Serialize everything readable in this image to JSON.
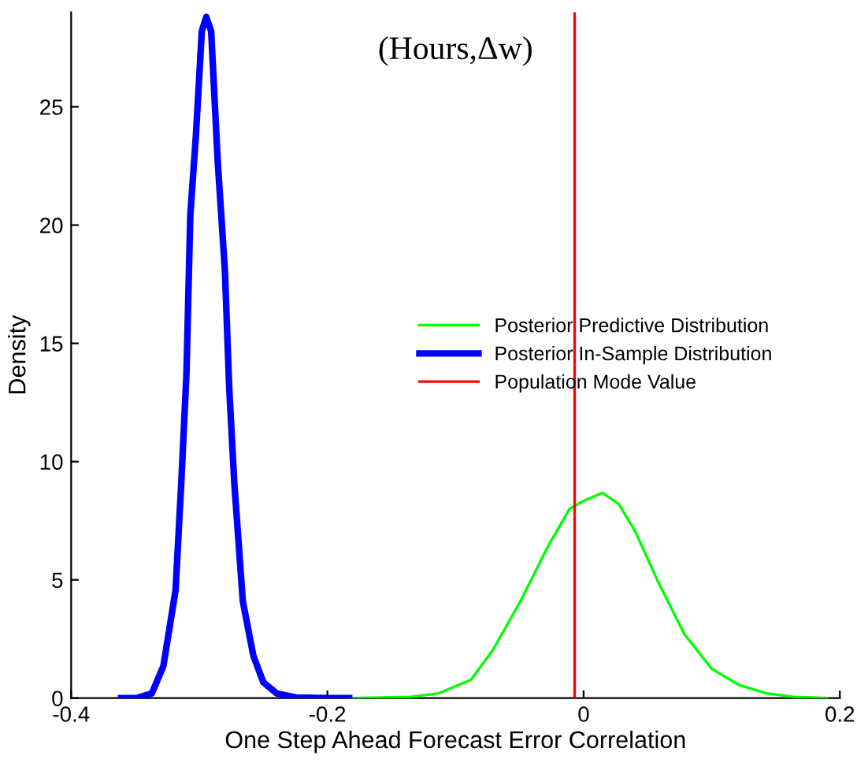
{
  "chart_data": {
    "type": "line",
    "title": "(Hours,Δw)",
    "xlabel": "One Step Ahead Forecast Error Correlation",
    "ylabel": "Density",
    "series": [
      {
        "name": "Posterior Predictive Distribution",
        "color": "#00ff00",
        "x": [
          -0.183,
          -0.135,
          -0.1134,
          -0.0878,
          -0.0707,
          -0.0493,
          -0.028,
          -0.011,
          0.0,
          0.0147,
          0.0275,
          0.04,
          0.0574,
          0.0787,
          0.1,
          0.1215,
          0.1427,
          0.164,
          0.19
        ],
        "values": [
          0,
          0.05,
          0.2,
          0.78,
          2.05,
          4.1,
          6.4,
          8.0,
          8.34,
          8.68,
          8.2,
          7.08,
          5.0,
          2.7,
          1.24,
          0.55,
          0.2,
          0.05,
          0
        ]
      },
      {
        "name": "Posterior In-Sample Distribution",
        "color": "#0000ff",
        "x": [
          -0.361,
          -0.349,
          -0.337,
          -0.328,
          -0.3185,
          -0.314,
          -0.31,
          -0.307,
          -0.3026,
          -0.298,
          -0.2945,
          -0.2907,
          -0.2856,
          -0.28,
          -0.2766,
          -0.2727,
          -0.266,
          -0.2578,
          -0.25,
          -0.2395,
          -0.2245,
          -0.199,
          -0.183
        ],
        "values": [
          0,
          0,
          0.2,
          1.35,
          4.56,
          9.14,
          13.7,
          20.4,
          23.8,
          28.2,
          28.8,
          28.2,
          22.7,
          18.1,
          13.1,
          9.14,
          4.1,
          1.8,
          0.67,
          0.2,
          0.03,
          0,
          0
        ]
      }
    ],
    "ref_lines": [
      {
        "axis": "x",
        "value": -0.007,
        "label": "Population Mode Value",
        "color": "#ff0000",
        "line_style": "solid"
      }
    ],
    "xlim": [
      -0.4,
      0.2
    ],
    "xticks": [
      -0.4,
      -0.2,
      0,
      0.2
    ],
    "ylim": [
      0,
      29
    ],
    "yticks": [
      0,
      5,
      10,
      15,
      20,
      25
    ],
    "grid": false,
    "legend": "center",
    "line_style": "solid",
    "marker": "none"
  }
}
